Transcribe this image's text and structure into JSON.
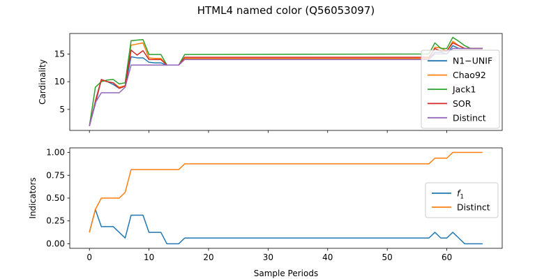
{
  "title": "HTML4 named color (Q56053097)",
  "chart_data": [
    {
      "type": "line",
      "ylabel": "Cardinality",
      "xlim": [
        -3.3,
        69.3
      ],
      "ylim": [
        1.2,
        18.7
      ],
      "yticks": [
        5,
        10,
        15
      ],
      "xticks": [
        0,
        10,
        20,
        30,
        40,
        50,
        60
      ],
      "show_xtick_labels": false,
      "legend_position": "right",
      "series": [
        {
          "name": "N1−UNIF",
          "color": "#1f77b4",
          "x": [
            0,
            1,
            2,
            3,
            4,
            5,
            6,
            7,
            8,
            9,
            10,
            11,
            12,
            13,
            14,
            15,
            16,
            57,
            58,
            59,
            60,
            61,
            62,
            63,
            64,
            65,
            66
          ],
          "y": [
            2,
            6,
            10.3,
            10,
            9.5,
            8.8,
            9.2,
            14.5,
            14.3,
            14.3,
            13.5,
            13.4,
            13.4,
            13,
            13,
            13,
            14.1,
            14.1,
            15.3,
            15.3,
            15,
            16.5,
            16,
            16,
            16,
            16,
            16
          ]
        },
        {
          "name": "Chao92",
          "color": "#ff7f0e",
          "x": [
            0,
            1,
            2,
            3,
            4,
            5,
            6,
            7,
            8,
            9,
            10,
            11,
            12,
            13,
            14,
            15,
            16,
            57,
            58,
            59,
            60,
            61,
            62,
            63,
            64,
            65,
            66
          ],
          "y": [
            2,
            6.4,
            10.3,
            10,
            9.8,
            9,
            9.3,
            16.6,
            16.8,
            17,
            14.3,
            14.2,
            14.2,
            13,
            13,
            13,
            14.2,
            14.2,
            16.2,
            16.1,
            15.5,
            17.3,
            16.5,
            16,
            16,
            16,
            16
          ]
        },
        {
          "name": "Jack1",
          "color": "#2ca02c",
          "x": [
            0,
            1,
            2,
            3,
            4,
            5,
            6,
            7,
            8,
            9,
            10,
            11,
            12,
            13,
            14,
            15,
            16,
            57,
            58,
            59,
            60,
            61,
            62,
            63,
            64,
            65,
            66
          ],
          "y": [
            2,
            9,
            10,
            10.3,
            10.4,
            9.6,
            9.8,
            17.4,
            17.5,
            17.6,
            14.9,
            14.9,
            14.9,
            13,
            13,
            13,
            14.9,
            15,
            17,
            16,
            16,
            18,
            17.3,
            16.5,
            16,
            16,
            16
          ]
        },
        {
          "name": "SOR",
          "color": "#d62728",
          "x": [
            0,
            1,
            2,
            3,
            4,
            5,
            6,
            7,
            8,
            9,
            10,
            11,
            12,
            13,
            14,
            15,
            16,
            57,
            58,
            59,
            60,
            61,
            62,
            63,
            64,
            65,
            66
          ],
          "y": [
            2,
            6.5,
            10.4,
            10,
            9.8,
            8.8,
            9.2,
            15.7,
            14.8,
            15.6,
            14,
            14,
            14,
            13,
            13,
            13,
            14.4,
            14.4,
            16,
            15.5,
            15.5,
            17,
            16.5,
            16,
            16,
            16,
            16
          ]
        },
        {
          "name": "Distinct",
          "color": "#9467bd",
          "x": [
            0,
            1,
            2,
            3,
            4,
            5,
            6,
            7,
            8,
            9,
            10,
            11,
            12,
            13,
            14,
            15,
            16,
            57,
            58,
            59,
            60,
            61,
            62,
            63,
            64,
            65,
            66
          ],
          "y": [
            2,
            6.2,
            8,
            8,
            8,
            8,
            9,
            13,
            13,
            13,
            13,
            13,
            13,
            13,
            13,
            13,
            14,
            14,
            15,
            15,
            15,
            16,
            16,
            16,
            16,
            16,
            16
          ]
        }
      ]
    },
    {
      "type": "line",
      "ylabel": "Indicators",
      "xlabel": "Sample Periods",
      "xlim": [
        -3.3,
        69.3
      ],
      "ylim": [
        -0.05,
        1.05
      ],
      "yticks": [
        0.0,
        0.25,
        0.5,
        0.75,
        1.0
      ],
      "ytick_labels": [
        "0.00",
        "0.25",
        "0.50",
        "0.75",
        "1.00"
      ],
      "xticks": [
        0,
        10,
        20,
        30,
        40,
        50,
        60
      ],
      "legend_position": "right",
      "series": [
        {
          "name": "f",
          "name_subscript": "1",
          "color": "#1f77b4",
          "x": [
            0,
            1,
            2,
            3,
            4,
            5,
            6,
            7,
            8,
            9,
            10,
            11,
            12,
            13,
            14,
            15,
            16,
            57,
            58,
            59,
            60,
            61,
            62,
            63,
            64,
            65,
            66
          ],
          "y": [
            0.125,
            0.375,
            0.1875,
            0.1875,
            0.1875,
            0.125,
            0.0625,
            0.3125,
            0.3125,
            0.3125,
            0.125,
            0.125,
            0.125,
            0.0,
            0.0,
            0.0,
            0.0625,
            0.0625,
            0.125,
            0.0625,
            0.0625,
            0.125,
            0.0625,
            0.0,
            0.0,
            0.0,
            0.0
          ]
        },
        {
          "name": "Distinct",
          "color": "#ff7f0e",
          "x": [
            0,
            1,
            2,
            3,
            4,
            5,
            6,
            7,
            8,
            9,
            10,
            11,
            12,
            13,
            14,
            15,
            16,
            57,
            58,
            59,
            60,
            61,
            62,
            63,
            64,
            65,
            66
          ],
          "y": [
            0.125,
            0.375,
            0.5,
            0.5,
            0.5,
            0.5,
            0.5625,
            0.8125,
            0.8125,
            0.8125,
            0.8125,
            0.8125,
            0.8125,
            0.8125,
            0.8125,
            0.8125,
            0.875,
            0.875,
            0.9375,
            0.9375,
            0.9375,
            1.0,
            1.0,
            1.0,
            1.0,
            1.0,
            1.0
          ]
        }
      ]
    }
  ]
}
